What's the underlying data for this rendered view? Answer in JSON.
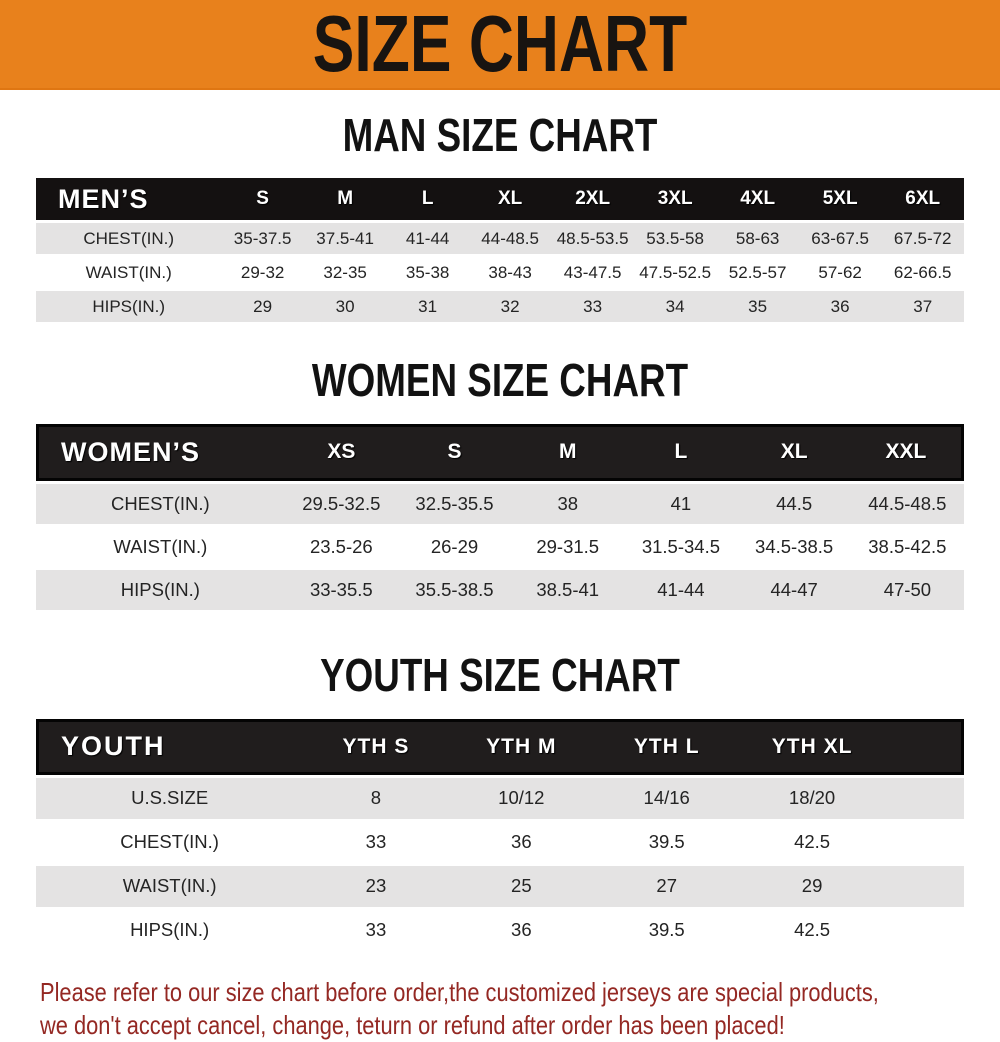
{
  "banner": {
    "title": "SIZE CHART"
  },
  "colors": {
    "banner_bg": "#e8811c",
    "table_header_bg": "#141111",
    "row_stripe": "#e4e3e3",
    "disclaimer_text": "#942823"
  },
  "men": {
    "heading": "MAN SIZE CHART",
    "table": {
      "header": [
        "MEN’S",
        "S",
        "M",
        "L",
        "XL",
        "2XL",
        "3XL",
        "4XL",
        "5XL",
        "6XL"
      ],
      "rows": [
        [
          "CHEST(IN.)",
          "35-37.5",
          "37.5-41",
          "41-44",
          "44-48.5",
          "48.5-53.5",
          "53.5-58",
          "58-63",
          "63-67.5",
          "67.5-72"
        ],
        [
          "WAIST(IN.)",
          "29-32",
          "32-35",
          "35-38",
          "38-43",
          "43-47.5",
          "47.5-52.5",
          "52.5-57",
          "57-62",
          "62-66.5"
        ],
        [
          "HIPS(IN.)",
          "29",
          "30",
          "31",
          "32",
          "33",
          "34",
          "35",
          "36",
          "37"
        ]
      ]
    }
  },
  "women": {
    "heading": "WOMEN SIZE CHART",
    "table": {
      "header": [
        "WOMEN’S",
        "XS",
        "S",
        "M",
        "L",
        "XL",
        "XXL"
      ],
      "rows": [
        [
          "CHEST(IN.)",
          "29.5-32.5",
          "32.5-35.5",
          "38",
          "41",
          "44.5",
          "44.5-48.5"
        ],
        [
          "WAIST(IN.)",
          "23.5-26",
          "26-29",
          "29-31.5",
          "31.5-34.5",
          "34.5-38.5",
          "38.5-42.5"
        ],
        [
          "HIPS(IN.)",
          "33-35.5",
          "35.5-38.5",
          "38.5-41",
          "41-44",
          "44-47",
          "47-50"
        ]
      ]
    }
  },
  "youth": {
    "heading": "YOUTH SIZE CHART",
    "table": {
      "header": [
        "YOUTH",
        "YTH S",
        "YTH M",
        "YTH L",
        "YTH XL"
      ],
      "rows": [
        [
          "U.S.SIZE",
          "8",
          "10/12",
          "14/16",
          "18/20"
        ],
        [
          "CHEST(IN.)",
          "33",
          "36",
          "39.5",
          "42.5"
        ],
        [
          "WAIST(IN.)",
          "23",
          "25",
          "27",
          "29"
        ],
        [
          "HIPS(IN.)",
          "33",
          "36",
          "39.5",
          "42.5"
        ]
      ]
    }
  },
  "disclaimer": {
    "line1": "Please refer to our size chart before order,the customized jerseys are special products,",
    "line2": "we don't accept cancel, change, teturn or refund after order has been placed!"
  }
}
